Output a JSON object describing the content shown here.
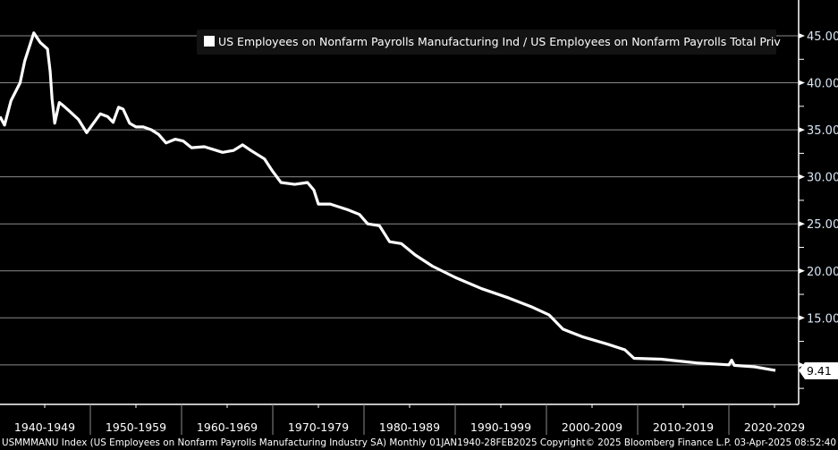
{
  "chart_data": {
    "type": "line",
    "legend": {
      "label": "US Employees on Nonfarm Payrolls Manufacturing Ind / US Employees on Nonfarm Payrolls Total Priv",
      "position": "top-right"
    },
    "series": [
      {
        "name": "US Employees on Nonfarm Payrolls Manufacturing Ind / US Employees on Nonfarm Payrolls Total Priv",
        "color": "#ffffff",
        "points": [
          [
            1940.1,
            36.4
          ],
          [
            1940.6,
            35.5
          ],
          [
            1941.3,
            38.1
          ],
          [
            1942.3,
            40.0
          ],
          [
            1942.8,
            42.3
          ],
          [
            1943.8,
            45.3
          ],
          [
            1944.5,
            44.3
          ],
          [
            1945.3,
            43.6
          ],
          [
            1945.6,
            41.2
          ],
          [
            1945.8,
            38.3
          ],
          [
            1946.1,
            35.7
          ],
          [
            1946.6,
            37.9
          ],
          [
            1947.0,
            37.6
          ],
          [
            1947.7,
            37.0
          ],
          [
            1948.7,
            36.1
          ],
          [
            1949.6,
            34.7
          ],
          [
            1950.2,
            35.5
          ],
          [
            1951.1,
            36.7
          ],
          [
            1951.9,
            36.4
          ],
          [
            1952.5,
            35.8
          ],
          [
            1953.1,
            37.4
          ],
          [
            1953.6,
            37.2
          ],
          [
            1954.3,
            35.7
          ],
          [
            1955.0,
            35.3
          ],
          [
            1955.8,
            35.3
          ],
          [
            1956.7,
            35.0
          ],
          [
            1957.5,
            34.5
          ],
          [
            1958.3,
            33.6
          ],
          [
            1959.3,
            34.0
          ],
          [
            1960.2,
            33.8
          ],
          [
            1961.1,
            33.1
          ],
          [
            1962.5,
            33.2
          ],
          [
            1964.5,
            32.6
          ],
          [
            1965.7,
            32.8
          ],
          [
            1966.7,
            33.4
          ],
          [
            1967.6,
            32.8
          ],
          [
            1969.1,
            31.9
          ],
          [
            1969.9,
            30.7
          ],
          [
            1970.9,
            29.4
          ],
          [
            1972.4,
            29.2
          ],
          [
            1973.8,
            29.4
          ],
          [
            1974.5,
            28.6
          ],
          [
            1975.0,
            27.1
          ],
          [
            1976.3,
            27.1
          ],
          [
            1978.2,
            26.5
          ],
          [
            1979.5,
            26.0
          ],
          [
            1980.4,
            25.0
          ],
          [
            1981.7,
            24.8
          ],
          [
            1982.8,
            23.1
          ],
          [
            1984.1,
            22.9
          ],
          [
            1985.6,
            21.7
          ],
          [
            1987.5,
            20.5
          ],
          [
            1990.0,
            19.3
          ],
          [
            1992.9,
            18.1
          ],
          [
            1995.9,
            17.1
          ],
          [
            1998.3,
            16.2
          ],
          [
            2000.3,
            15.3
          ],
          [
            2001.8,
            13.8
          ],
          [
            2003.9,
            13.0
          ],
          [
            2006.7,
            12.2
          ],
          [
            2008.6,
            11.6
          ],
          [
            2009.6,
            10.7
          ],
          [
            2012.6,
            10.6
          ],
          [
            2016.5,
            10.2
          ],
          [
            2020.0,
            10.0
          ],
          [
            2020.3,
            10.5
          ],
          [
            2020.6,
            9.95
          ],
          [
            2022.8,
            9.8
          ],
          [
            2025.1,
            9.41
          ]
        ]
      }
    ],
    "last_value_label": "9.41",
    "xlim": [
      1940,
      2028.5
    ],
    "ylim": [
      4,
      48.8
    ],
    "y_ticks": [
      "45.00",
      "40.00",
      "35.00",
      "30.00",
      "25.00",
      "20.00",
      "15.00",
      "10.00"
    ],
    "y_tick_values": [
      45,
      40,
      35,
      30,
      25,
      20,
      15,
      10
    ],
    "x_tick_labels": [
      "1940-1949",
      "1950-1959",
      "1960-1969",
      "1970-1979",
      "1980-1989",
      "1990-1999",
      "2000-2009",
      "2010-2019",
      "2020-2029"
    ],
    "x_decade_starts": [
      1940,
      1950,
      1960,
      1970,
      1980,
      1990,
      2000,
      2010,
      2020
    ],
    "grid": true,
    "y_axis_side": "right",
    "colors": {
      "background": "#000000",
      "line": "#ffffff",
      "grid": "#8a8a8a",
      "tick_text": "#d8e6f5"
    }
  },
  "footer": {
    "text": "USMMMANU Index (US Employees on Nonfarm Payrolls Manufacturing Industry SA)  Monthly 01JAN1940-28FEB2025  Copyright© 2025 Bloomberg Finance L.P.  03-Apr-2025 08:52:40"
  }
}
